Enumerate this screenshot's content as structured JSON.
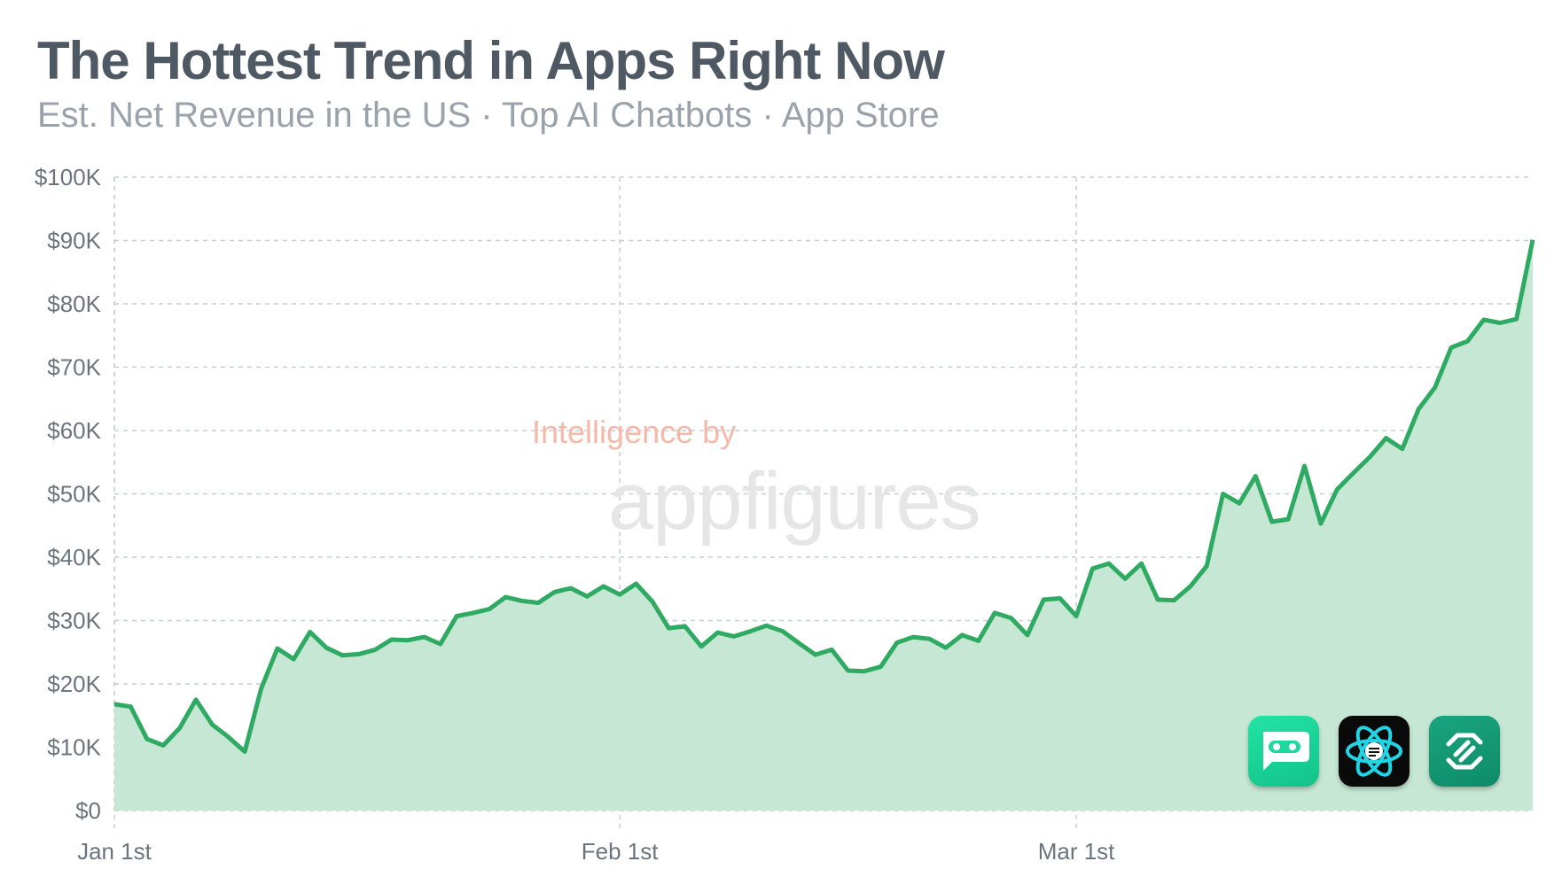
{
  "header": {
    "title": "The Hottest Trend in Apps Right Now",
    "subtitle": "Est. Net Revenue in the US · Top AI Chatbots · App Store"
  },
  "watermark": {
    "line1": "Intelligence by",
    "line2": "appfigures"
  },
  "app_icons": [
    {
      "name": "chatbot-robot-icon",
      "bg": "#1fd89c"
    },
    {
      "name": "atom-chat-icon",
      "bg": "#0a0a0a"
    },
    {
      "name": "knot-logo-icon",
      "bg": "#12997a"
    }
  ],
  "chart_data": {
    "type": "area",
    "title": "The Hottest Trend in Apps Right Now",
    "subtitle": "Est. Net Revenue in the US · Top AI Chatbots · App Store",
    "xlabel": "",
    "ylabel": "",
    "x_start": "Jan 1st",
    "x_ticks": [
      {
        "label": "Jan 1st",
        "day": 0
      },
      {
        "label": "Feb 1st",
        "day": 31
      },
      {
        "label": "Mar 1st",
        "day": 59
      }
    ],
    "ylim": [
      0,
      100000
    ],
    "y_ticks": [
      {
        "label": "$0",
        "value": 0
      },
      {
        "label": "$10K",
        "value": 10000
      },
      {
        "label": "$20K",
        "value": 20000
      },
      {
        "label": "$30K",
        "value": 30000
      },
      {
        "label": "$40K",
        "value": 40000
      },
      {
        "label": "$50K",
        "value": 50000
      },
      {
        "label": "$60K",
        "value": 60000
      },
      {
        "label": "$70K",
        "value": 70000
      },
      {
        "label": "$80K",
        "value": 80000
      },
      {
        "label": "$90K",
        "value": 90000
      },
      {
        "label": "$100K",
        "value": 100000
      }
    ],
    "grid": true,
    "line_color": "#2eaa62",
    "fill_color": "#c6e7d3",
    "series": [
      {
        "values": [
          16800,
          16400,
          11300,
          10300,
          13000,
          17500,
          13600,
          11600,
          9300,
          19200,
          25600,
          23900,
          28200,
          25700,
          24500,
          24700,
          25400,
          27000,
          26900,
          27400,
          26300,
          30700,
          31200,
          31800,
          33700,
          33100,
          32800,
          34500,
          35100,
          33800,
          35400,
          34100,
          35800,
          33000,
          28800,
          29100,
          25900,
          28100,
          27500,
          28300,
          29200,
          28300,
          26400,
          24600,
          25400,
          22100,
          22000,
          22700,
          26500,
          27400,
          27100,
          25700,
          27700,
          26800,
          31200,
          30400,
          27700,
          33300,
          33500,
          30700,
          38200,
          39000,
          36600,
          39000,
          33300,
          33200,
          35400,
          38600,
          50000,
          48500,
          52800,
          45600,
          46000,
          54400,
          45300,
          50700,
          53300,
          55800,
          58800,
          57100,
          63400,
          66800,
          73100,
          74100,
          77500,
          77000,
          77600,
          90100
        ]
      }
    ]
  }
}
